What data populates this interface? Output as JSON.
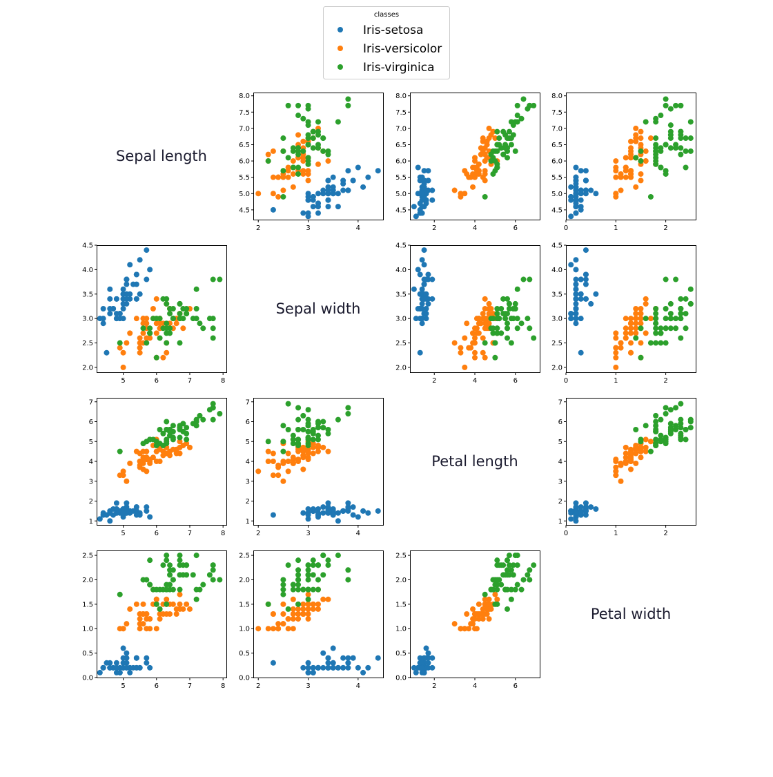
{
  "chart_data": {
    "type": "scatter",
    "subtype": "pairplot-matrix",
    "features": [
      "Sepal length",
      "Sepal width",
      "Petal length",
      "Petal width"
    ],
    "legend": {
      "title": "classes",
      "placement": "top-center",
      "entries": [
        "Iris-setosa",
        "Iris-versicolor",
        "Iris-virginica"
      ]
    },
    "class_colors": {
      "Iris-setosa": "#1f77b4",
      "Iris-versicolor": "#ff7f0e",
      "Iris-virginica": "#2ca02c"
    },
    "axis_ranges": {
      "Sepal length": [
        4.2,
        8.1
      ],
      "Sepal width": [
        1.9,
        4.5
      ],
      "Petal length": [
        0.8,
        7.2
      ],
      "Petal width": [
        0.0,
        2.6
      ]
    },
    "ticks": {
      "Sepal length": {
        "as_y": [
          "4.5",
          "5.0",
          "5.5",
          "6.0",
          "6.5",
          "7.0",
          "7.5",
          "8.0"
        ],
        "as_x": [
          "5",
          "6",
          "7",
          "8"
        ]
      },
      "Sepal width": {
        "as_y": [
          "2.0",
          "2.5",
          "3.0",
          "3.5",
          "4.0",
          "4.5"
        ],
        "as_x": [
          "2",
          "3",
          "4"
        ]
      },
      "Petal length": {
        "as_y": [
          "1",
          "2",
          "3",
          "4",
          "5",
          "6",
          "7"
        ],
        "as_x": [
          "2",
          "4",
          "6"
        ]
      },
      "Petal width": {
        "as_y": [
          "0.0",
          "0.5",
          "1.0",
          "1.5",
          "2.0",
          "2.5"
        ],
        "as_x": [
          "0",
          "1",
          "2"
        ]
      }
    },
    "note": "Each sample is [Sepal length, Sepal width, Petal length, Petal width]. Off-diagonal panel (row i, col j) plots feature j on x and feature i on y.",
    "samples": {
      "Iris-setosa": [
        [
          5.1,
          3.5,
          1.4,
          0.2
        ],
        [
          4.9,
          3.0,
          1.4,
          0.2
        ],
        [
          4.7,
          3.2,
          1.3,
          0.2
        ],
        [
          4.6,
          3.1,
          1.5,
          0.2
        ],
        [
          5.0,
          3.6,
          1.4,
          0.2
        ],
        [
          5.4,
          3.9,
          1.7,
          0.4
        ],
        [
          4.6,
          3.4,
          1.4,
          0.3
        ],
        [
          5.0,
          3.4,
          1.5,
          0.2
        ],
        [
          4.4,
          2.9,
          1.4,
          0.2
        ],
        [
          4.9,
          3.1,
          1.5,
          0.1
        ],
        [
          5.4,
          3.7,
          1.5,
          0.2
        ],
        [
          4.8,
          3.4,
          1.6,
          0.2
        ],
        [
          4.8,
          3.0,
          1.4,
          0.1
        ],
        [
          4.3,
          3.0,
          1.1,
          0.1
        ],
        [
          5.8,
          4.0,
          1.2,
          0.2
        ],
        [
          5.7,
          4.4,
          1.5,
          0.4
        ],
        [
          5.4,
          3.9,
          1.3,
          0.4
        ],
        [
          5.1,
          3.5,
          1.4,
          0.3
        ],
        [
          5.7,
          3.8,
          1.7,
          0.3
        ],
        [
          5.1,
          3.8,
          1.5,
          0.3
        ],
        [
          5.4,
          3.4,
          1.7,
          0.2
        ],
        [
          5.1,
          3.7,
          1.5,
          0.4
        ],
        [
          4.6,
          3.6,
          1.0,
          0.2
        ],
        [
          5.1,
          3.3,
          1.7,
          0.5
        ],
        [
          4.8,
          3.4,
          1.9,
          0.2
        ],
        [
          5.0,
          3.0,
          1.6,
          0.2
        ],
        [
          5.0,
          3.4,
          1.6,
          0.4
        ],
        [
          5.2,
          3.5,
          1.5,
          0.2
        ],
        [
          5.2,
          3.4,
          1.4,
          0.2
        ],
        [
          4.7,
          3.2,
          1.6,
          0.2
        ],
        [
          4.8,
          3.1,
          1.6,
          0.2
        ],
        [
          5.4,
          3.4,
          1.5,
          0.4
        ],
        [
          5.2,
          4.1,
          1.5,
          0.1
        ],
        [
          5.5,
          4.2,
          1.4,
          0.2
        ],
        [
          4.9,
          3.1,
          1.5,
          0.1
        ],
        [
          5.0,
          3.2,
          1.2,
          0.2
        ],
        [
          5.5,
          3.5,
          1.3,
          0.2
        ],
        [
          4.9,
          3.1,
          1.5,
          0.1
        ],
        [
          4.4,
          3.0,
          1.3,
          0.2
        ],
        [
          5.1,
          3.4,
          1.5,
          0.2
        ],
        [
          5.0,
          3.5,
          1.3,
          0.3
        ],
        [
          4.5,
          2.3,
          1.3,
          0.3
        ],
        [
          4.4,
          3.2,
          1.3,
          0.2
        ],
        [
          5.0,
          3.5,
          1.6,
          0.6
        ],
        [
          5.1,
          3.8,
          1.9,
          0.4
        ],
        [
          4.8,
          3.0,
          1.4,
          0.3
        ],
        [
          5.1,
          3.8,
          1.6,
          0.2
        ],
        [
          4.6,
          3.2,
          1.4,
          0.2
        ],
        [
          5.3,
          3.7,
          1.5,
          0.2
        ],
        [
          5.0,
          3.3,
          1.4,
          0.2
        ]
      ],
      "Iris-versicolor": [
        [
          7.0,
          3.2,
          4.7,
          1.4
        ],
        [
          6.4,
          3.2,
          4.5,
          1.5
        ],
        [
          6.9,
          3.1,
          4.9,
          1.5
        ],
        [
          5.5,
          2.3,
          4.0,
          1.3
        ],
        [
          6.5,
          2.8,
          4.6,
          1.5
        ],
        [
          5.7,
          2.8,
          4.5,
          1.3
        ],
        [
          6.3,
          3.3,
          4.7,
          1.6
        ],
        [
          4.9,
          2.4,
          3.3,
          1.0
        ],
        [
          6.6,
          2.9,
          4.6,
          1.3
        ],
        [
          5.2,
          2.7,
          3.9,
          1.4
        ],
        [
          5.0,
          2.0,
          3.5,
          1.0
        ],
        [
          5.9,
          3.0,
          4.2,
          1.5
        ],
        [
          6.0,
          2.2,
          4.0,
          1.0
        ],
        [
          6.1,
          2.9,
          4.7,
          1.4
        ],
        [
          5.6,
          2.9,
          3.6,
          1.3
        ],
        [
          6.7,
          3.1,
          4.4,
          1.4
        ],
        [
          5.6,
          3.0,
          4.5,
          1.5
        ],
        [
          5.8,
          2.7,
          4.1,
          1.0
        ],
        [
          6.2,
          2.2,
          4.5,
          1.5
        ],
        [
          5.6,
          2.5,
          3.9,
          1.1
        ],
        [
          5.9,
          3.2,
          4.8,
          1.8
        ],
        [
          6.1,
          2.8,
          4.0,
          1.3
        ],
        [
          6.3,
          2.5,
          4.9,
          1.5
        ],
        [
          6.1,
          2.8,
          4.7,
          1.2
        ],
        [
          6.4,
          2.9,
          4.3,
          1.3
        ],
        [
          6.6,
          3.0,
          4.4,
          1.4
        ],
        [
          6.8,
          2.8,
          4.8,
          1.4
        ],
        [
          6.7,
          3.0,
          5.0,
          1.7
        ],
        [
          6.0,
          2.9,
          4.5,
          1.5
        ],
        [
          5.7,
          2.6,
          3.5,
          1.0
        ],
        [
          5.5,
          2.4,
          3.8,
          1.1
        ],
        [
          5.5,
          2.4,
          3.7,
          1.0
        ],
        [
          5.8,
          2.7,
          3.9,
          1.2
        ],
        [
          6.0,
          2.7,
          5.1,
          1.6
        ],
        [
          5.4,
          3.0,
          4.5,
          1.5
        ],
        [
          6.0,
          3.4,
          4.5,
          1.6
        ],
        [
          6.7,
          3.1,
          4.7,
          1.5
        ],
        [
          6.3,
          2.3,
          4.4,
          1.3
        ],
        [
          5.6,
          3.0,
          4.1,
          1.3
        ],
        [
          5.5,
          2.5,
          4.0,
          1.3
        ],
        [
          5.5,
          2.6,
          4.4,
          1.2
        ],
        [
          6.1,
          3.0,
          4.6,
          1.4
        ],
        [
          5.8,
          2.6,
          4.0,
          1.2
        ],
        [
          5.0,
          2.3,
          3.3,
          1.0
        ],
        [
          5.6,
          2.7,
          4.2,
          1.3
        ],
        [
          5.7,
          3.0,
          4.2,
          1.2
        ],
        [
          5.7,
          2.9,
          4.2,
          1.3
        ],
        [
          6.2,
          2.9,
          4.3,
          1.3
        ],
        [
          5.1,
          2.5,
          3.0,
          1.1
        ],
        [
          5.7,
          2.8,
          4.1,
          1.3
        ]
      ],
      "Iris-virginica": [
        [
          6.3,
          3.3,
          6.0,
          2.5
        ],
        [
          5.8,
          2.7,
          5.1,
          1.9
        ],
        [
          7.1,
          3.0,
          5.9,
          2.1
        ],
        [
          6.3,
          2.9,
          5.6,
          1.8
        ],
        [
          6.5,
          3.0,
          5.8,
          2.2
        ],
        [
          7.6,
          3.0,
          6.6,
          2.1
        ],
        [
          4.9,
          2.5,
          4.5,
          1.7
        ],
        [
          7.3,
          2.9,
          6.3,
          1.8
        ],
        [
          6.7,
          2.5,
          5.8,
          1.8
        ],
        [
          7.2,
          3.6,
          6.1,
          2.5
        ],
        [
          6.5,
          3.2,
          5.1,
          2.0
        ],
        [
          6.4,
          2.7,
          5.3,
          1.9
        ],
        [
          6.8,
          3.0,
          5.5,
          2.1
        ],
        [
          5.7,
          2.5,
          5.0,
          2.0
        ],
        [
          5.8,
          2.8,
          5.1,
          2.4
        ],
        [
          6.4,
          3.2,
          5.3,
          2.3
        ],
        [
          6.5,
          3.0,
          5.5,
          1.8
        ],
        [
          7.7,
          3.8,
          6.7,
          2.2
        ],
        [
          7.7,
          2.6,
          6.9,
          2.3
        ],
        [
          6.0,
          2.2,
          5.0,
          1.5
        ],
        [
          6.9,
          3.2,
          5.7,
          2.3
        ],
        [
          5.6,
          2.8,
          4.9,
          2.0
        ],
        [
          7.7,
          2.8,
          6.7,
          2.0
        ],
        [
          6.3,
          2.7,
          4.9,
          1.8
        ],
        [
          6.7,
          3.3,
          5.7,
          2.1
        ],
        [
          7.2,
          3.2,
          6.0,
          1.8
        ],
        [
          6.2,
          2.8,
          4.8,
          1.8
        ],
        [
          6.1,
          3.0,
          4.9,
          1.8
        ],
        [
          6.4,
          2.8,
          5.6,
          2.1
        ],
        [
          7.2,
          3.0,
          5.8,
          1.6
        ],
        [
          7.4,
          2.8,
          6.1,
          1.9
        ],
        [
          7.9,
          3.8,
          6.4,
          2.0
        ],
        [
          6.4,
          2.8,
          5.6,
          2.2
        ],
        [
          6.3,
          2.8,
          5.1,
          1.5
        ],
        [
          6.1,
          2.6,
          5.6,
          1.4
        ],
        [
          7.7,
          3.0,
          6.1,
          2.3
        ],
        [
          6.3,
          3.4,
          5.6,
          2.4
        ],
        [
          6.4,
          3.1,
          5.5,
          1.8
        ],
        [
          6.0,
          3.0,
          4.8,
          1.8
        ],
        [
          6.9,
          3.1,
          5.4,
          2.1
        ],
        [
          6.7,
          3.1,
          5.6,
          2.4
        ],
        [
          6.9,
          3.1,
          5.1,
          2.3
        ],
        [
          5.8,
          2.7,
          5.1,
          1.9
        ],
        [
          6.8,
          3.2,
          5.9,
          2.3
        ],
        [
          6.7,
          3.3,
          5.7,
          2.5
        ],
        [
          6.7,
          3.0,
          5.2,
          2.3
        ],
        [
          6.3,
          2.5,
          5.0,
          1.9
        ],
        [
          6.5,
          3.0,
          5.2,
          2.0
        ],
        [
          6.2,
          3.4,
          5.4,
          2.3
        ],
        [
          5.9,
          3.0,
          5.1,
          1.8
        ]
      ]
    }
  }
}
